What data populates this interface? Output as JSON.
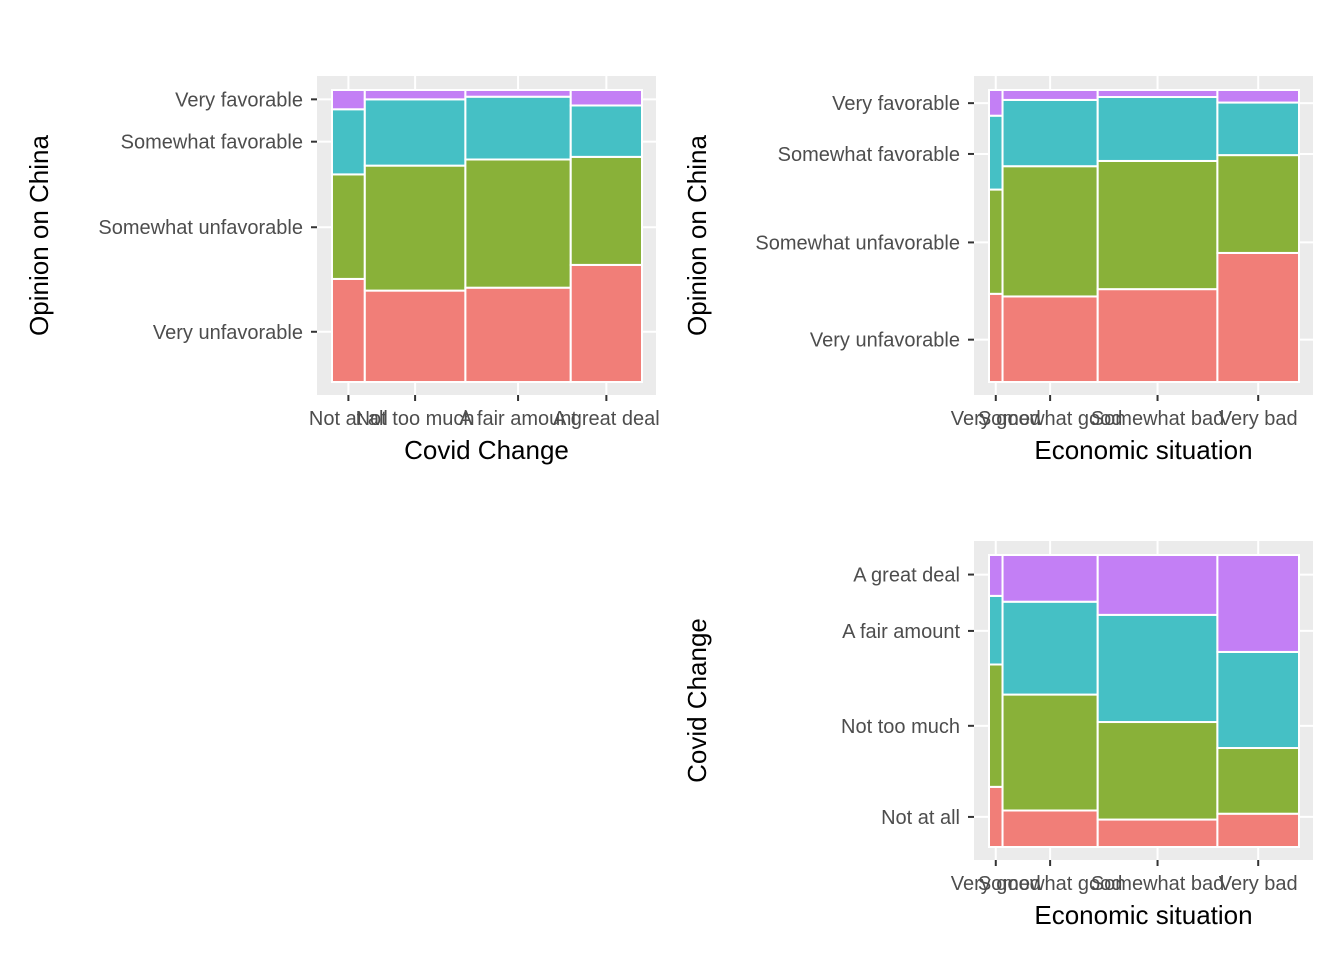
{
  "colors": {
    "panel_background": "#ebebeb",
    "grid": "#ffffff",
    "fills": [
      "#f17a74",
      "#85ae33",
      "#3fbec3",
      "#c17bf5"
    ]
  },
  "chart_data": [
    {
      "type": "mosaic",
      "xlabel": "Covid Change",
      "ylabel": "Opinion on China",
      "x_categories": [
        "Not at all",
        "Not too much",
        "A fair amount",
        "A great deal"
      ],
      "x_widths": [
        0.104,
        0.319,
        0.334,
        0.226
      ],
      "y_categories": [
        "Very unfavorable",
        "Somewhat unfavorable",
        "Somewhat favorable",
        "Very favorable"
      ],
      "proportions": [
        [
          0.353,
          0.358,
          0.223,
          0.066
        ],
        [
          0.313,
          0.428,
          0.227,
          0.032
        ],
        [
          0.323,
          0.439,
          0.215,
          0.023
        ],
        [
          0.401,
          0.37,
          0.176,
          0.053
        ]
      ],
      "y_tick_values": [
        0.172,
        0.53,
        0.823,
        0.968
      ],
      "legend": "none",
      "grid": true
    },
    {
      "type": "mosaic",
      "xlabel": "Economic situation",
      "ylabel": "Opinion on China",
      "x_categories": [
        "Very good",
        "Somewhat good",
        "Somewhat bad",
        "Very bad"
      ],
      "x_widths": [
        0.043,
        0.302,
        0.38,
        0.259
      ],
      "y_categories": [
        "Very unfavorable",
        "Somewhat unfavorable",
        "Somewhat favorable",
        "Very favorable"
      ],
      "proportions": [
        [
          0.302,
          0.357,
          0.253,
          0.088
        ],
        [
          0.293,
          0.446,
          0.227,
          0.034
        ],
        [
          0.318,
          0.439,
          0.219,
          0.024
        ],
        [
          0.442,
          0.335,
          0.18,
          0.043
        ]
      ],
      "y_tick_values": [
        0.145,
        0.478,
        0.781,
        0.955
      ],
      "legend": "none",
      "grid": true
    },
    {
      "type": "mosaic",
      "xlabel": "Economic situation",
      "ylabel": "Covid Change",
      "x_categories": [
        "Very good",
        "Somewhat good",
        "Somewhat bad",
        "Very bad"
      ],
      "x_widths": [
        0.043,
        0.302,
        0.38,
        0.259
      ],
      "y_categories": [
        "Not at all",
        "Not too much",
        "A fair amount",
        "A great deal"
      ],
      "proportions": [
        [
          0.206,
          0.419,
          0.235,
          0.14
        ],
        [
          0.125,
          0.397,
          0.318,
          0.16
        ],
        [
          0.094,
          0.334,
          0.367,
          0.205
        ],
        [
          0.114,
          0.225,
          0.329,
          0.332
        ]
      ],
      "y_tick_values": [
        0.103,
        0.415,
        0.74,
        0.933
      ],
      "legend": "none",
      "grid": true
    }
  ]
}
